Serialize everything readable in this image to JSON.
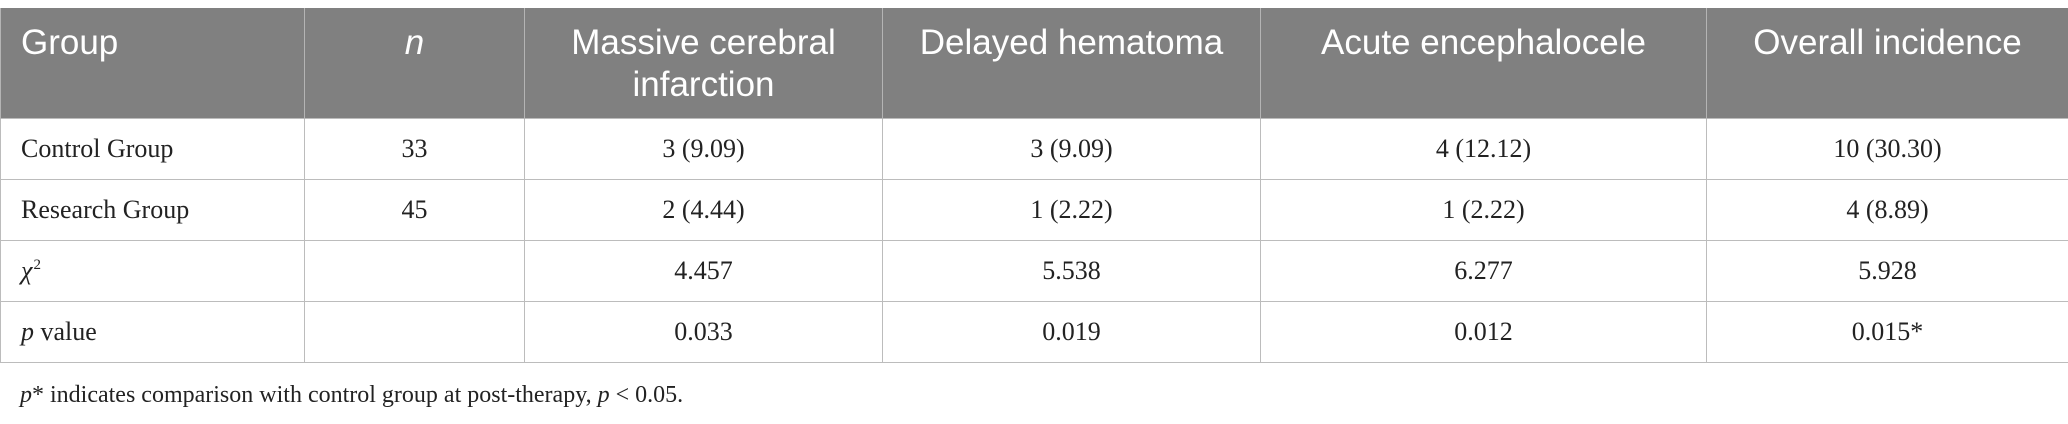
{
  "table": {
    "headers": [
      "Group",
      "n",
      "Massive cerebral infarction",
      "Delayed hematoma",
      "Acute encephalocele",
      "Overall incidence"
    ],
    "rows": [
      [
        "Control Group",
        "33",
        "3 (9.09)",
        "3 (9.09)",
        "4 (12.12)",
        "10 (30.30)"
      ],
      [
        "Research Group",
        "45",
        "2 (4.44)",
        "1 (2.22)",
        "1 (2.22)",
        "4 (8.89)"
      ],
      [
        "",
        "",
        "4.457",
        "5.538",
        "6.277",
        "5.928"
      ],
      [
        "",
        "",
        "0.033",
        "0.019",
        "0.012",
        "0.015*"
      ]
    ],
    "chi_label": {
      "symbol": "χ",
      "superscript": "2"
    },
    "p_label": {
      "symbol": "p",
      "rest": " value"
    }
  },
  "footnote": {
    "p1": "p",
    "t1": "* indicates comparison with control group at post-therapy, ",
    "p2": "p",
    "t2": " < 0.05."
  }
}
